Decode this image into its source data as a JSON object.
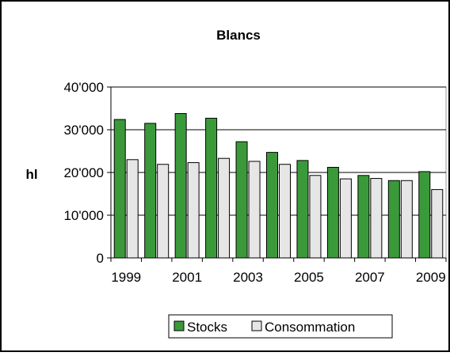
{
  "chart_data": {
    "type": "bar",
    "title": "Blancs",
    "ylabel": "hl",
    "xlabel": "",
    "ylim": [
      0,
      40000
    ],
    "yticks": [
      0,
      10000,
      20000,
      30000,
      40000
    ],
    "ytick_labels": [
      "0",
      "10'000",
      "20'000",
      "30'000",
      "40'000"
    ],
    "categories": [
      "1999",
      "2000",
      "2001",
      "2002",
      "2003",
      "2004",
      "2005",
      "2006",
      "2007",
      "2008",
      "2009"
    ],
    "xtick_labels": [
      "1999",
      "",
      "2001",
      "",
      "2003",
      "",
      "2005",
      "",
      "2007",
      "",
      "2009"
    ],
    "grid": true,
    "legend_position": "bottom",
    "series": [
      {
        "name": "Stocks",
        "color": "#3a9a3a",
        "values": [
          32400,
          31500,
          33800,
          32700,
          27200,
          24700,
          22800,
          21200,
          19300,
          18100,
          20200
        ]
      },
      {
        "name": "Consommation",
        "color": "#e6e6e6",
        "values": [
          23000,
          21900,
          22300,
          23300,
          22600,
          21900,
          19300,
          18500,
          18600,
          18100,
          16000
        ]
      }
    ]
  }
}
